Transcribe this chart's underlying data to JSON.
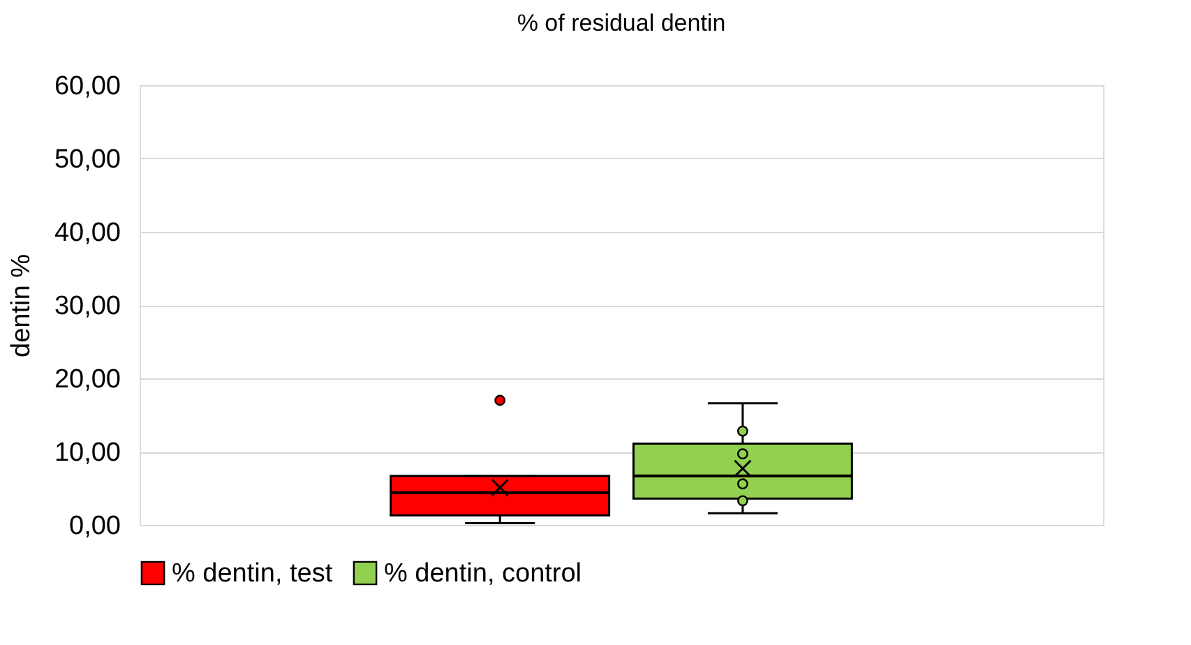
{
  "chart_data": {
    "type": "box",
    "title": "% of residual dentin",
    "ylabel": "dentin %",
    "categories": [
      null
    ],
    "series": [
      {
        "name": "% dentin, test",
        "color": "#ff0000",
        "boxes": [
          {
            "low": 0.25,
            "q1": 1.3,
            "median": 4.4,
            "q3": 6.7,
            "high": 6.7,
            "mean": 5.1,
            "outliers": [
              17.0
            ]
          }
        ]
      },
      {
        "name": "% dentin, control",
        "color": "#92d050",
        "boxes": [
          {
            "low": 1.6,
            "q1": 3.6,
            "median": 6.7,
            "q3": 11.1,
            "high": 16.6,
            "mean": 7.7,
            "outliers": [
              12.8,
              9.7,
              5.6,
              3.3
            ]
          }
        ]
      }
    ],
    "ylim": [
      0,
      60
    ],
    "yticks": [
      {
        "value": 0,
        "label": "0,00"
      },
      {
        "value": 10,
        "label": "10,00"
      },
      {
        "value": 20,
        "label": "20,00"
      },
      {
        "value": 30,
        "label": "30,00"
      },
      {
        "value": 40,
        "label": "40,00"
      },
      {
        "value": 50,
        "label": "50,00"
      },
      {
        "value": 60,
        "label": "60,00"
      }
    ],
    "grid": "y",
    "legend": "bottom",
    "tick_labels": "y"
  }
}
